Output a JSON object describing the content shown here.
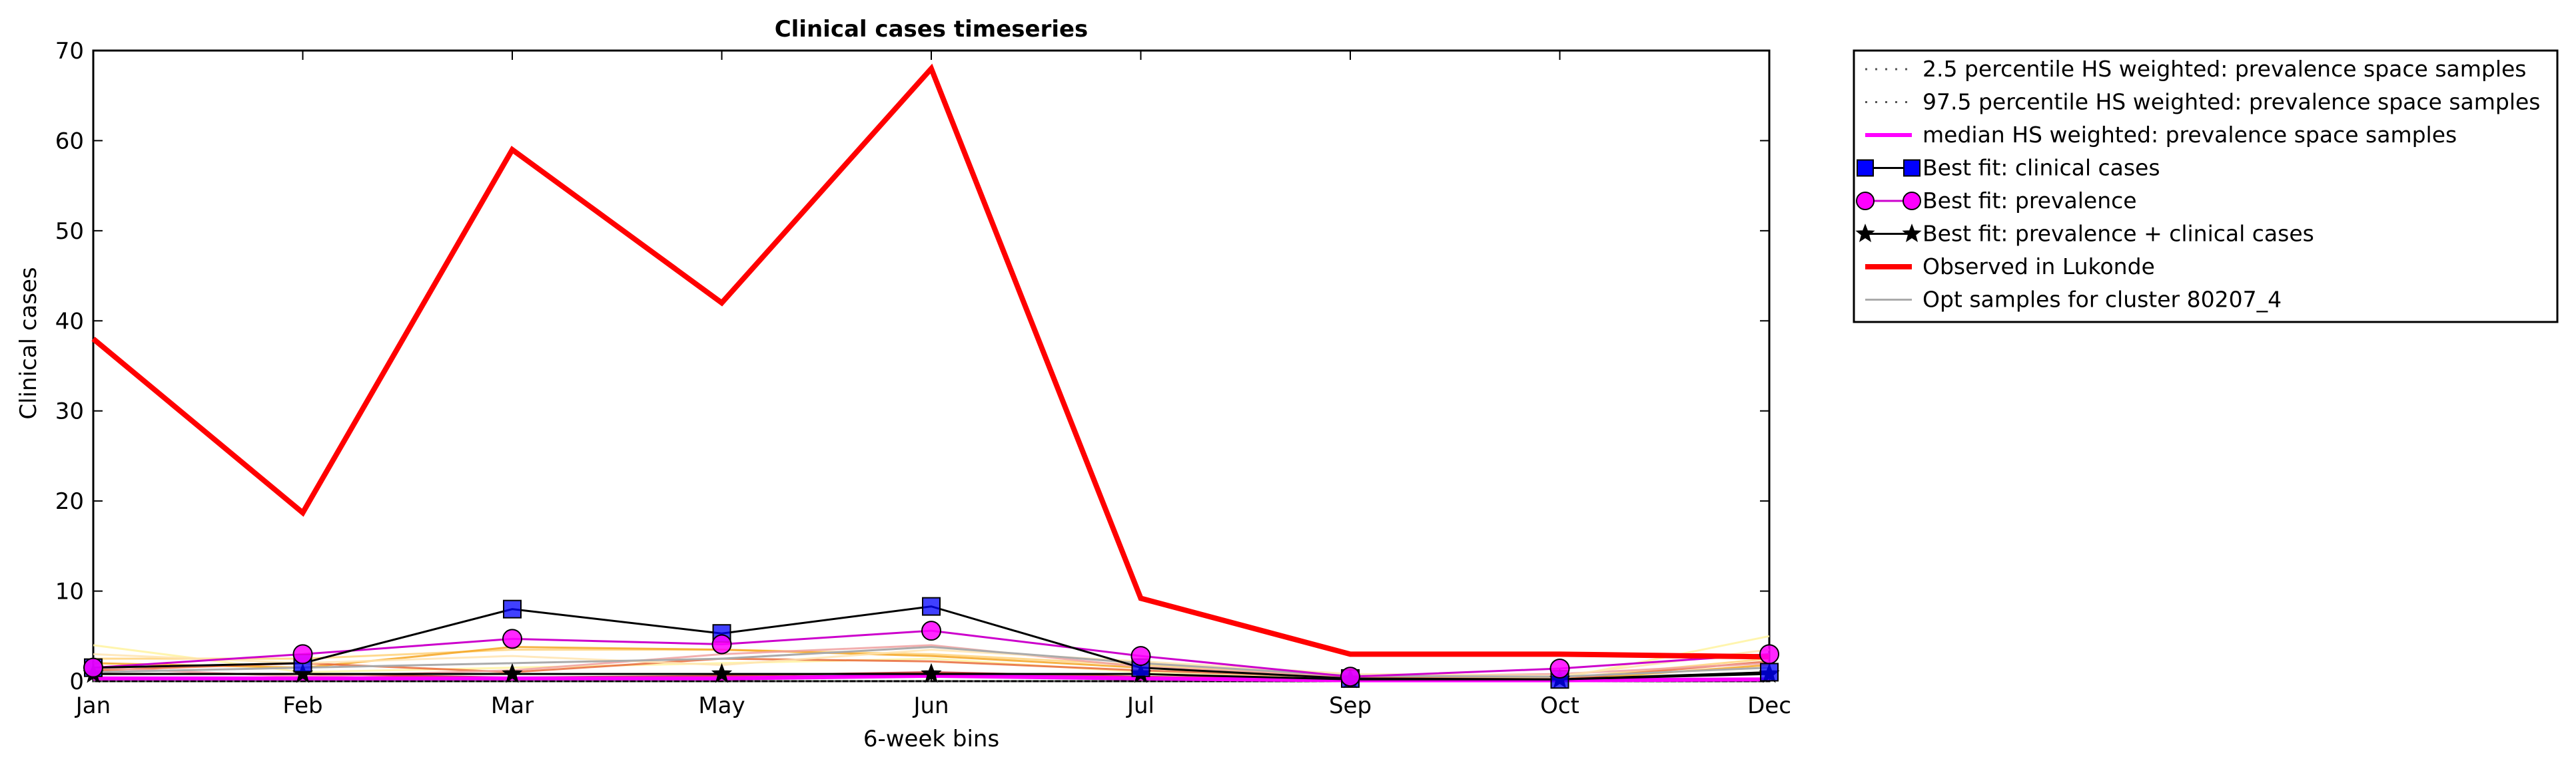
{
  "chart_data": {
    "type": "line",
    "title": "Clinical cases timeseries",
    "xlabel": "6-week bins",
    "ylabel": "Clinical cases",
    "categories": [
      "Jan",
      "Feb",
      "Mar",
      "May",
      "Jun",
      "Jul",
      "Sep",
      "Oct",
      "Dec"
    ],
    "ylim": [
      0,
      70
    ],
    "yticks": [
      0,
      10,
      20,
      30,
      40,
      50,
      60,
      70
    ],
    "grid": false,
    "legend_position": "outside-top-right",
    "colors": {
      "observed": "#ff0000",
      "best_fit_clinical": "#000000",
      "best_fit_clinical_marker": "#0000ff",
      "best_fit_prevalence": "#cc00cc",
      "best_fit_prevalence_marker": "#ff00ff",
      "median": "#ff00ff",
      "percentile": "#555555",
      "opt_samples": "#aaaaaa"
    },
    "series": [
      {
        "name": "2.5 percentile HS weighted: prevalence space samples",
        "style": "dotted",
        "values": [
          0,
          0,
          0,
          0,
          0,
          0,
          0,
          0,
          0
        ]
      },
      {
        "name": "97.5 percentile HS weighted: prevalence space samples",
        "style": "dotted",
        "values": [
          0,
          0,
          0,
          0,
          0,
          0,
          0,
          0,
          0
        ]
      },
      {
        "name": "median HS weighted: prevalence space samples",
        "style": "solid",
        "values": [
          0.3,
          0.3,
          0.3,
          0.3,
          0.6,
          0.3,
          0.1,
          0.1,
          0.2
        ]
      },
      {
        "name": "Best fit: clinical cases",
        "style": "line-square-marker",
        "values": [
          1.5,
          2.0,
          8.0,
          5.3,
          8.3,
          1.5,
          0.3,
          0.2,
          1.0
        ]
      },
      {
        "name": "Best fit: prevalence",
        "style": "line-circle-marker",
        "values": [
          1.5,
          3.0,
          4.7,
          4.1,
          5.6,
          2.8,
          0.5,
          1.4,
          3.0
        ]
      },
      {
        "name": "Best fit: prevalence + clinical cases",
        "style": "line-star-marker",
        "values": [
          0.8,
          0.8,
          0.8,
          0.8,
          0.8,
          0.8,
          0.2,
          0.2,
          0.8
        ]
      },
      {
        "name": "Observed in Lukonde",
        "style": "thick-solid",
        "values": [
          38,
          18.7,
          59,
          42,
          68,
          9.2,
          3,
          3,
          2.7
        ]
      },
      {
        "name": "Opt samples for cluster 80207_4",
        "style": "thin-solid",
        "values": [
          1.0,
          1.5,
          2.0,
          2.5,
          3.8,
          2.0,
          0.6,
          0.5,
          1.5
        ]
      }
    ],
    "sample_lines": [
      {
        "color": "#fff3a0",
        "values": [
          4.0,
          1.0,
          1.5,
          2.0,
          2.5,
          1.0,
          0.2,
          0.3,
          5.0
        ]
      },
      {
        "color": "#ffd27a",
        "values": [
          2.5,
          2.5,
          3.5,
          3.5,
          3.0,
          1.8,
          0.5,
          0.3,
          2.5
        ]
      },
      {
        "color": "#f5a623",
        "values": [
          2.0,
          1.5,
          3.8,
          3.5,
          2.8,
          1.5,
          0.3,
          0.1,
          1.8
        ]
      },
      {
        "color": "#e86a3a",
        "values": [
          1.2,
          2.0,
          1.0,
          2.5,
          2.2,
          1.2,
          0.4,
          0.2,
          2.2
        ]
      },
      {
        "color": "#c9302c",
        "values": [
          0.8,
          0.8,
          0.4,
          0.6,
          1.0,
          0.5,
          0.2,
          0.1,
          1.0
        ]
      },
      {
        "color": "#f0a0a0",
        "values": [
          1.5,
          0.5,
          1.2,
          3.0,
          4.0,
          1.6,
          0.5,
          0.8,
          2.0
        ]
      },
      {
        "color": "#ffe4b0",
        "values": [
          3.0,
          2.0,
          2.8,
          1.8,
          3.5,
          2.2,
          0.8,
          0.6,
          3.5
        ]
      }
    ]
  }
}
